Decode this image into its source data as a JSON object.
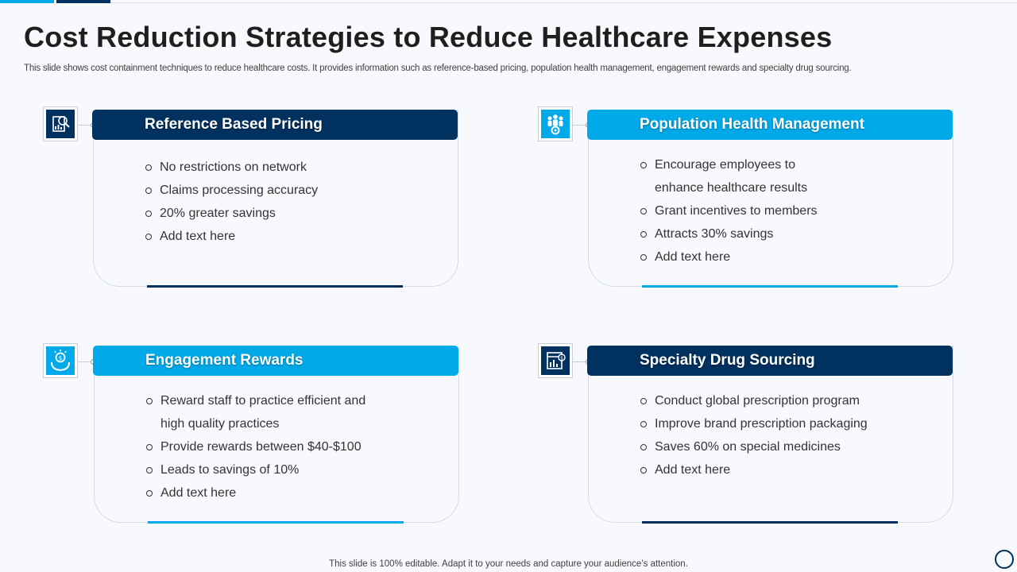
{
  "slide": {
    "title": "Cost Reduction Strategies to Reduce Healthcare Expenses",
    "subtitle": "This slide shows cost containment techniques to reduce healthcare costs. It provides information such as reference-based pricing, population health management, engagement rewards and specialty drug sourcing.",
    "footer": "This slide is 100% editable. Adapt it to your needs and capture your audience’s attention."
  },
  "colors": {
    "navy": "#00315f",
    "sky": "#00a9e8"
  },
  "cards": [
    {
      "title": "Reference Based Pricing",
      "icon": "pricing-chart-icon",
      "items": [
        "No restrictions on network",
        "Claims processing accuracy",
        "20% greater savings",
        "Add text here"
      ]
    },
    {
      "title": "Population Health Management",
      "icon": "people-gear-icon",
      "items": [
        "Encourage employees to enhance healthcare results",
        "Grant incentives to members",
        "Attracts 30% savings",
        "Add text here"
      ]
    },
    {
      "title": "Engagement Rewards",
      "icon": "hand-money-icon",
      "items": [
        "Reward staff to practice efficient and high quality practices",
        "Provide rewards between $40-$100",
        "Leads to savings of 10%",
        "Add text here"
      ]
    },
    {
      "title": "Specialty Drug Sourcing",
      "icon": "store-dollar-icon",
      "items": [
        "Conduct global prescription program",
        "Improve brand prescription packaging",
        "Saves 60% on special medicines",
        "Add text here"
      ]
    }
  ]
}
